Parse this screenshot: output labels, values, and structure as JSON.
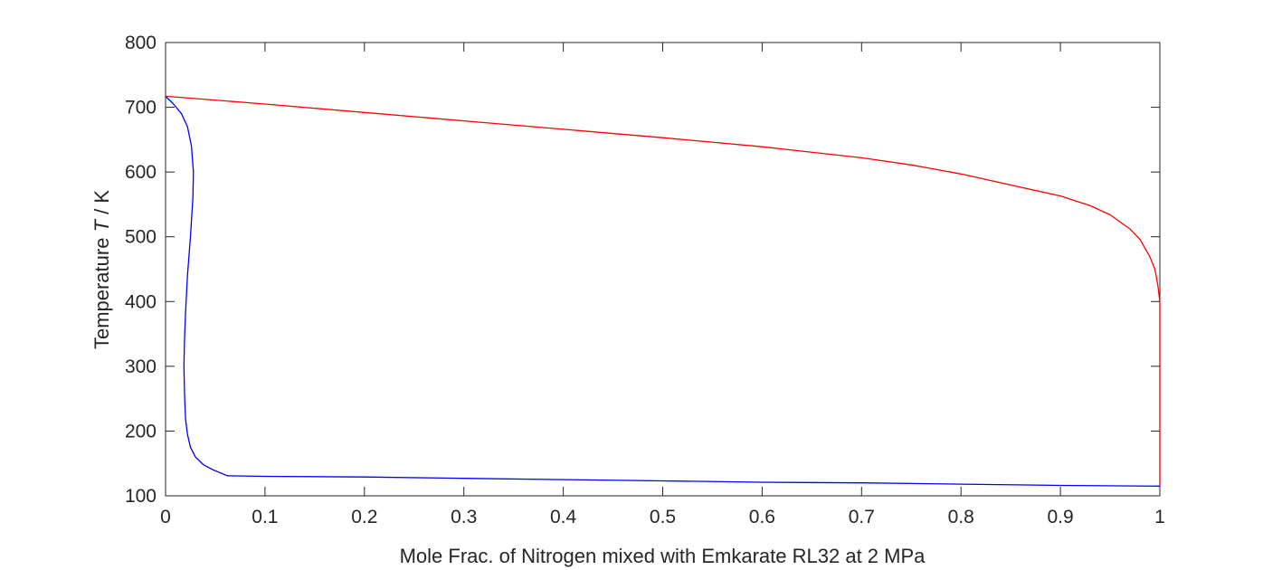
{
  "chart_data": {
    "type": "line",
    "title": "",
    "xlabel": "Mole Frac. of Nitrogen mixed with Emkarate RL32 at 2 MPa",
    "ylabel_prefix": "Temperature ",
    "ylabel_symbol": "T",
    "ylabel_suffix": " / K",
    "xlim": [
      0,
      1
    ],
    "ylim": [
      100,
      800
    ],
    "xticks": [
      0,
      0.1,
      0.2,
      0.3,
      0.4,
      0.5,
      0.6,
      0.7,
      0.8,
      0.9,
      1
    ],
    "xtick_labels": [
      "0",
      "0.1",
      "0.2",
      "0.3",
      "0.4",
      "0.5",
      "0.6",
      "0.7",
      "0.8",
      "0.9",
      "1"
    ],
    "yticks": [
      100,
      200,
      300,
      400,
      500,
      600,
      700,
      800
    ],
    "ytick_labels": [
      "100",
      "200",
      "300",
      "400",
      "500",
      "600",
      "700",
      "800"
    ],
    "grid": false,
    "box": true,
    "series": [
      {
        "color": "#0000ff",
        "x": [
          0.0,
          0.008,
          0.016,
          0.022,
          0.026,
          0.028,
          0.0275,
          0.025,
          0.022,
          0.02,
          0.019,
          0.0185,
          0.019,
          0.02,
          0.022,
          0.025,
          0.03,
          0.038,
          0.048,
          0.062,
          0.1,
          0.2,
          0.3,
          0.4,
          0.5,
          0.6,
          0.7,
          0.8,
          0.9,
          1.0
        ],
        "y": [
          717,
          705,
          690,
          670,
          640,
          600,
          560,
          500,
          440,
          380,
          340,
          300,
          260,
          220,
          195,
          175,
          160,
          148,
          140,
          131,
          130,
          129,
          127,
          125,
          123,
          121,
          120,
          118,
          116,
          115
        ]
      },
      {
        "color": "#ff0000",
        "x": [
          0.0,
          0.1,
          0.2,
          0.3,
          0.4,
          0.5,
          0.6,
          0.7,
          0.75,
          0.8,
          0.85,
          0.9,
          0.93,
          0.95,
          0.97,
          0.98,
          0.99,
          0.995,
          0.998,
          1.0,
          1.0,
          1.0
        ],
        "y": [
          717,
          705,
          692,
          679,
          666,
          653,
          639,
          622,
          611,
          597,
          580,
          563,
          548,
          534,
          512,
          496,
          469,
          450,
          425,
          400,
          200,
          115
        ]
      }
    ]
  }
}
